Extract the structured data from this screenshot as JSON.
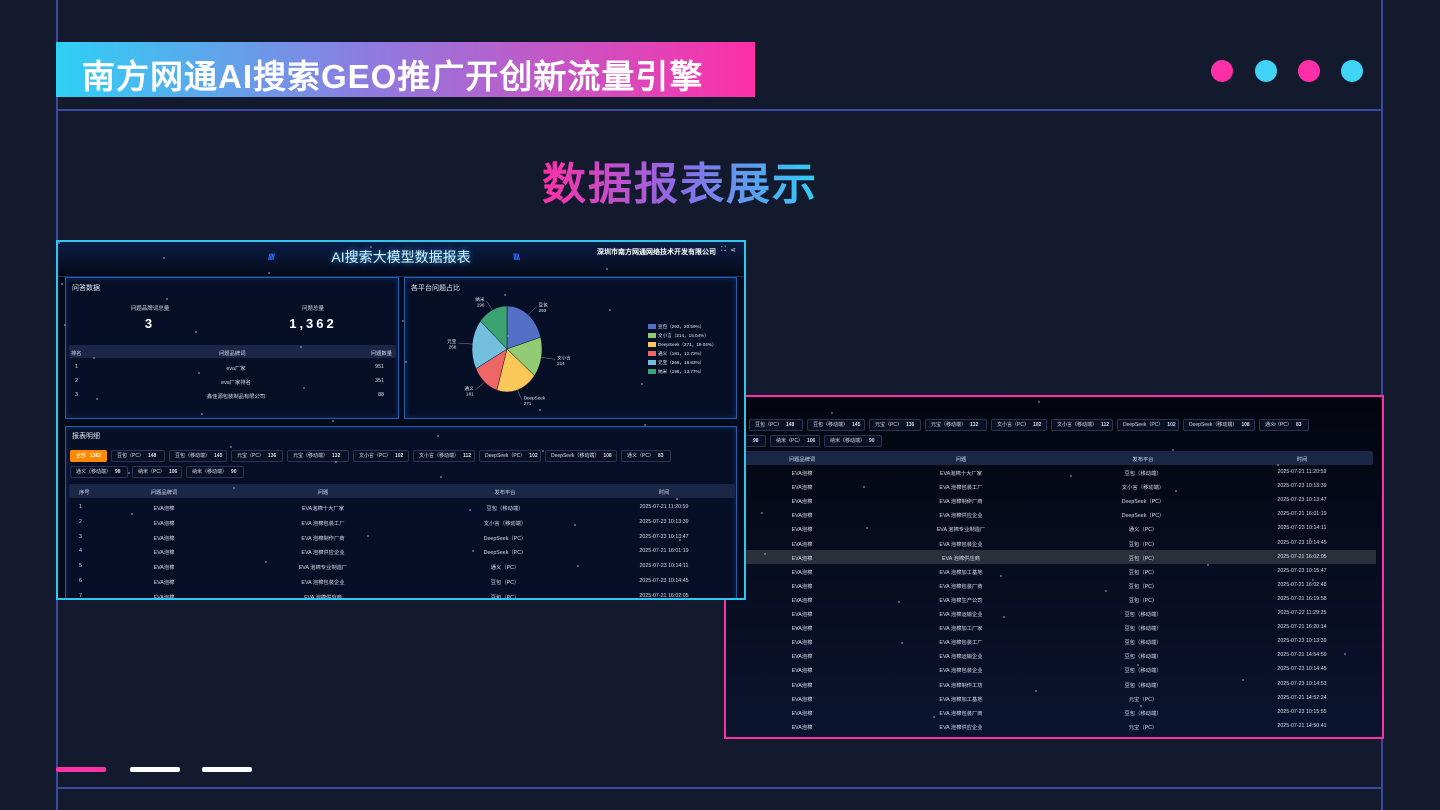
{
  "banner": {
    "title": "南方网通AI搜索GEO推广开创新流量引擎"
  },
  "dots": [
    "#ff2fa8",
    "#3fd3f5",
    "#ff2fa8",
    "#3fd3f5"
  ],
  "heading": "数据报表展示",
  "colors": {
    "accent_pink": "#ff2fa8",
    "accent_cyan": "#2fc6f0",
    "tab_active": "#ff8a00"
  },
  "dashboard": {
    "title": "AI搜索大模型数据报表",
    "company": "深圳市南方网通网络技术开发有限公司",
    "icons": [
      "fullscreen-icon",
      "share-icon"
    ],
    "qa": {
      "title": "问答数据",
      "brand_total_label": "问题品牌词总量",
      "brand_total": "3",
      "question_total_label": "问题总量",
      "question_total": "1,362",
      "columns": [
        "排名",
        "问题品牌词",
        "问题数量"
      ],
      "rows": [
        [
          "1",
          "eva厂家",
          "951"
        ],
        [
          "2",
          "eva厂家排名",
          "351"
        ],
        [
          "3",
          "鑫佳源包装制品有限公司",
          "88"
        ]
      ]
    },
    "pie": {
      "title": "各平台问题占比",
      "chart_data": {
        "type": "pie",
        "slices": [
          {
            "name": "豆包",
            "value": 293,
            "percent": "20.59%",
            "color": "#5470c6"
          },
          {
            "name": "文小言",
            "value": 214,
            "percent": "15.04%",
            "color": "#91cc75"
          },
          {
            "name": "DeepSeek",
            "value": 271,
            "percent": "19.04%",
            "color": "#fac858"
          },
          {
            "name": "通义",
            "value": 181,
            "percent": "12.72%",
            "color": "#ee6666"
          },
          {
            "name": "元宝",
            "value": 268,
            "percent": "18.83%",
            "color": "#73c0de"
          },
          {
            "name": "纳米",
            "value": 196,
            "percent": "13.77%",
            "color": "#3ba272"
          }
        ],
        "legend": "right"
      }
    },
    "detail": {
      "title": "报表明细",
      "tabs": [
        {
          "label": "全部",
          "count": "1362",
          "active": true
        },
        {
          "label": "豆包（PC）",
          "count": "148"
        },
        {
          "label": "豆包（移动端）",
          "count": "145"
        },
        {
          "label": "元宝（PC）",
          "count": "136"
        },
        {
          "label": "元宝（移动端）",
          "count": "132"
        },
        {
          "label": "文小言（PC）",
          "count": "102"
        },
        {
          "label": "文小言（移动端）",
          "count": "112"
        },
        {
          "label": "DeepSeek（PC）",
          "count": "102"
        },
        {
          "label": "DeepSeek（移动端）",
          "count": "108"
        },
        {
          "label": "通义（PC）",
          "count": "83"
        },
        {
          "label": "通义（移动端）",
          "count": "98"
        },
        {
          "label": "纳米（PC）",
          "count": "106"
        },
        {
          "label": "纳米（移动端）",
          "count": "90"
        }
      ],
      "columns": [
        "序号",
        "问题品牌词",
        "问题",
        "发布平台",
        "时间"
      ],
      "rows": [
        [
          "1",
          "EVA泡棉",
          "EVA泡棉十大厂家",
          "豆包（移动端）",
          "2025-07-21 11:20:59"
        ],
        [
          "2",
          "EVA泡棉",
          "EVA 泡棉包装工厂",
          "文小言（移动端）",
          "2025-07-23 10:13:39"
        ],
        [
          "3",
          "EVA泡棉",
          "EVA 泡棉制作厂商",
          "DeepSeek（PC）",
          "2025-07-23 10:13:47"
        ],
        [
          "4",
          "EVA泡棉",
          "EVA 泡棉供应企业",
          "DeepSeek（PC）",
          "2025-07-21 16:01:19"
        ],
        [
          "5",
          "EVA泡棉",
          "EVA 泡棉专业制造厂",
          "通义（PC）",
          "2025-07-23 10:14:11"
        ],
        [
          "6",
          "EVA泡棉",
          "EVA 泡棉包装企业",
          "豆包（PC）",
          "2025-07-23 10:14:45"
        ],
        [
          "7",
          "EVA泡棉",
          "EVA 泡棉供应商",
          "豆包（PC）",
          "2025-07-21 16:02:05"
        ],
        [
          "8",
          "EVA泡棉",
          "EVA 泡棉加工基地",
          "豆包（PC）",
          "2025-07-23 10:15:47"
        ],
        [
          "9",
          "EVA泡棉",
          "EVA 泡棉包装厂商",
          "豆包（PC）",
          "2025-07-21 16:02:48"
        ],
        [
          "10",
          "EVA泡棉",
          "EVA 泡棉生产公司",
          "豆包（PC）",
          "2025-07-21 16:19:58"
        ],
        [
          "11",
          "EVA泡棉",
          "EVA 泡棉运输企业",
          "豆包（移动端）",
          "2025-07-22 11:29:25"
        ],
        [
          "12",
          "EVA泡棉",
          "EVA 泡棉加工厂家",
          "豆包（移动端）",
          "2025-07-21 16:20:14"
        ],
        [
          "13",
          "EVA泡棉",
          "EVA 泡棉包装工厂",
          "豆包（移动端）",
          "2025-07-23 10:13:39"
        ],
        [
          "14",
          "EVA泡棉",
          "EVA 泡棉运输企业",
          "豆包（移动端）",
          "2025-07-21 14:54:59"
        ],
        [
          "15",
          "EVA泡棉",
          "EVA 泡棉包装企业",
          "豆包（移动端）",
          "2025-07-23 10:14:45"
        ],
        [
          "16",
          "EVA泡棉",
          "EVA 泡棉制作工坊",
          "豆包（移动端）",
          "2025-07-23 10:14:53"
        ],
        [
          "17",
          "EVA泡棉",
          "EVA 泡棉加工基地",
          "元宝（PC）",
          "2025-07-21 14:52:24"
        ],
        [
          "18",
          "EVA泡棉",
          "EVA 泡棉包装厂商",
          "豆包（移动端）",
          "2025-07-23 10:15:55"
        ],
        [
          "19",
          "EVA泡棉",
          "EVA 泡棉供应企业",
          "元宝（PC）",
          "2025-07-21 14:50:41"
        ]
      ]
    }
  }
}
